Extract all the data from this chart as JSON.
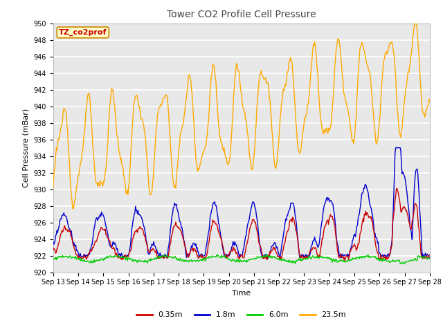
{
  "title": "Tower CO2 Profile Cell Pressure",
  "xlabel": "Time",
  "ylabel": "Cell Pressure (mBar)",
  "ylim": [
    920,
    950
  ],
  "yticks": [
    920,
    922,
    924,
    926,
    928,
    930,
    932,
    934,
    936,
    938,
    940,
    942,
    944,
    946,
    948,
    950
  ],
  "xtick_labels": [
    "Sep 13",
    "Sep 14",
    "Sep 15",
    "Sep 16",
    "Sep 17",
    "Sep 18",
    "Sep 19",
    "Sep 20",
    "Sep 21",
    "Sep 22",
    "Sep 23",
    "Sep 24",
    "Sep 25",
    "Sep 26",
    "Sep 27",
    "Sep 28"
  ],
  "legend_labels": [
    "0.35m",
    "1.8m",
    "6.0m",
    "23.5m"
  ],
  "colors": [
    "#cc0000",
    "#0000cc",
    "#00cc00",
    "#ffaa00"
  ],
  "annotation_text": "TZ_co2prof",
  "annotation_bg": "#ffffcc",
  "annotation_border": "#cc8800",
  "fig_bg": "#ffffff",
  "plot_bg": "#e8e8e8",
  "grid_color": "#ffffff",
  "line_width": 1.0,
  "n_points": 600,
  "title_fontsize": 10,
  "label_fontsize": 8,
  "tick_fontsize": 7,
  "legend_fontsize": 8
}
